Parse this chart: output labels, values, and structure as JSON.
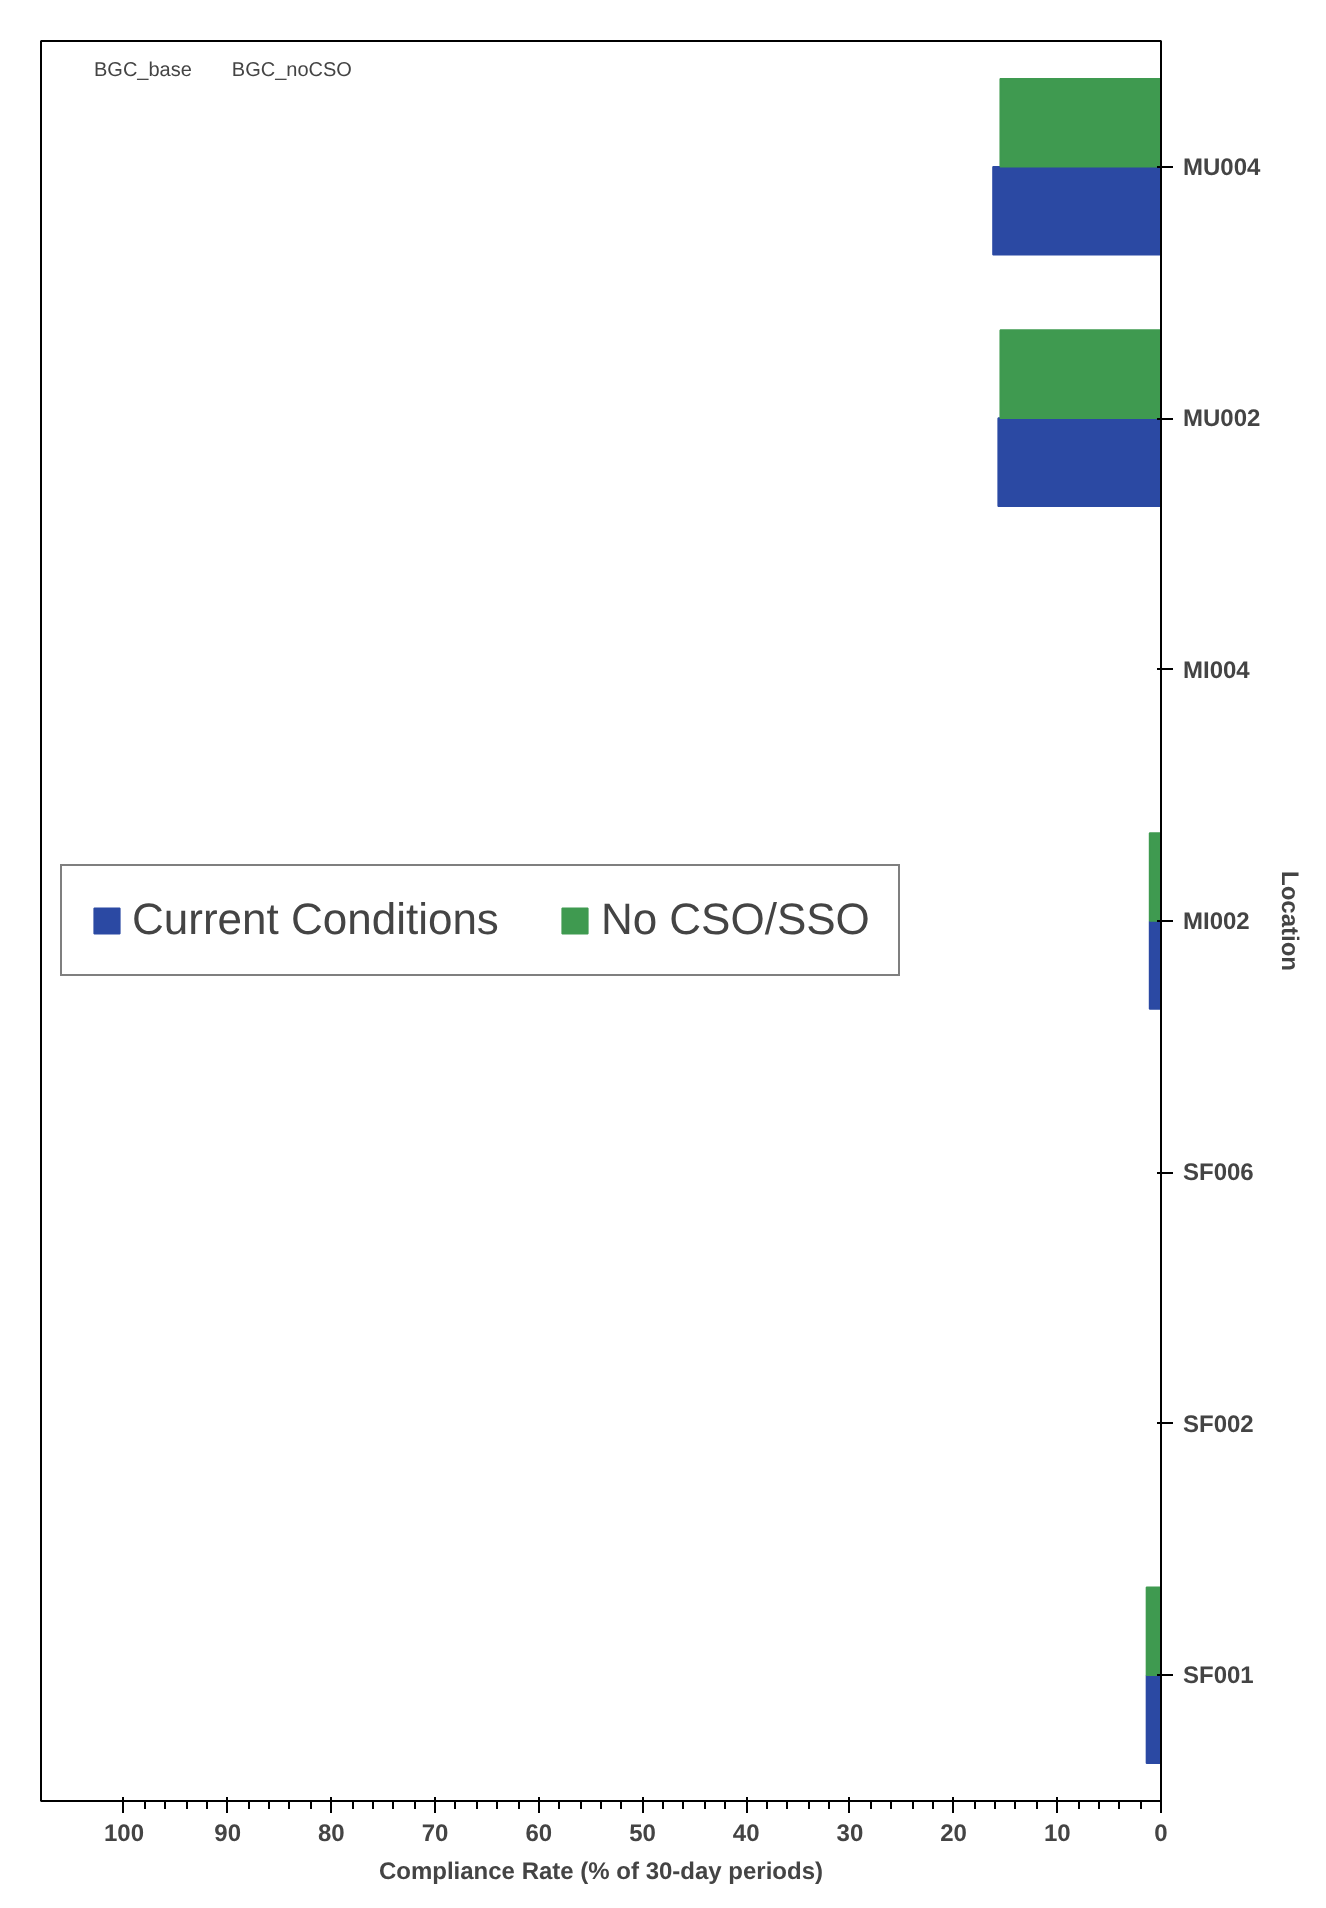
{
  "chart_data": {
    "type": "bar",
    "orientation": "horizontal",
    "xlabel": "Compliance Rate (% of 30-day periods)",
    "ylabel": "Location",
    "categories": [
      "MU004",
      "MU002",
      "MI004",
      "MI002",
      "SF006",
      "SF002",
      "SF001"
    ],
    "series": [
      {
        "name": "Current Conditions",
        "color": "#2b49a3",
        "values": [
          16.2,
          15.7,
          0,
          1.1,
          0,
          0,
          1.4
        ]
      },
      {
        "name": "No CSO/SSO",
        "color": "#3f9a50",
        "values": [
          15.5,
          15.5,
          0,
          1.1,
          0,
          0,
          1.4
        ]
      }
    ],
    "xlim": [
      108,
      0
    ],
    "xticks": [
      0,
      10,
      20,
      30,
      40,
      50,
      60,
      70,
      80,
      90,
      100
    ],
    "legend": "left",
    "grid": false,
    "annotations": [
      "BGC_base",
      "BGC_noCSO"
    ]
  }
}
